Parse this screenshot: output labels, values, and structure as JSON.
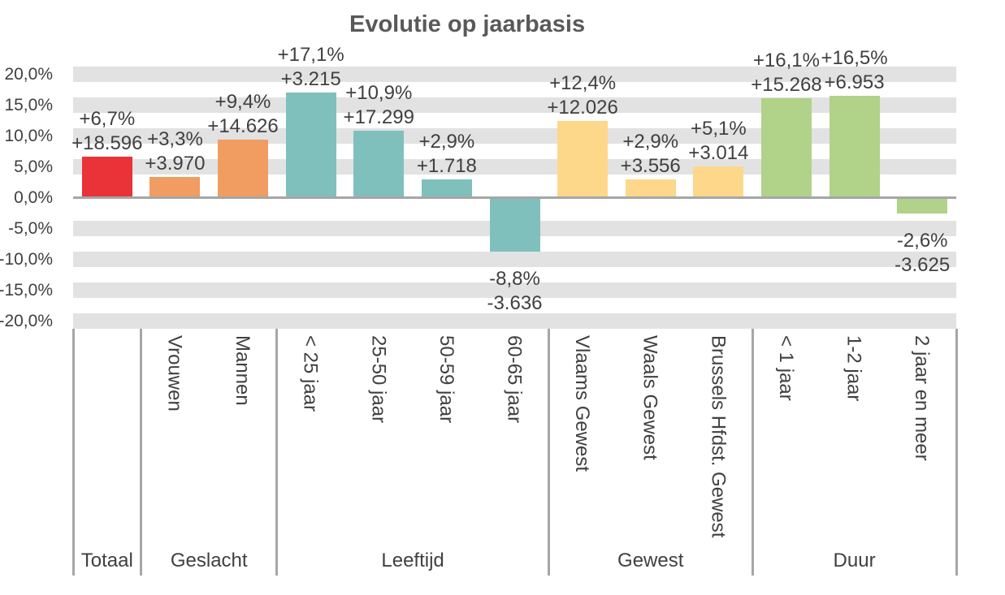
{
  "chart_data": {
    "type": "bar",
    "title": "Evolutie op jaarbasis",
    "y_axis": {
      "unit": "%",
      "min": -20,
      "max": 20,
      "tick_values": [
        20,
        15,
        10,
        5,
        0,
        -5,
        -10,
        -15,
        -20
      ],
      "tick_labels": [
        "20,0%",
        "15,0%",
        "10,0%",
        "5,0%",
        "0,0%",
        "-5,0%",
        "-10,0%",
        "-15,0%",
        "-20,0%"
      ],
      "gridlines": "thick gray bands at every 5% except 0"
    },
    "colors": {
      "band": "#e2e2e2",
      "axis_line": "#a6a6a6",
      "separator_line": "#a6a6a6",
      "label_text": "#404040",
      "title_text": "#595959"
    },
    "groups": [
      {
        "label": "Totaal",
        "color": "#e93338",
        "bars": [
          {
            "category": "",
            "pct_label": "+6,7%",
            "abs_label": "+18.596",
            "value_pct": 6.7,
            "value_abs": 18596
          }
        ]
      },
      {
        "label": "Geslacht",
        "color": "#f19c61",
        "bars": [
          {
            "category": "Vrouwen",
            "pct_label": "+3,3%",
            "abs_label": "+3.970",
            "value_pct": 3.3,
            "value_abs": 3970
          },
          {
            "category": "Mannen",
            "pct_label": "+9,4%",
            "abs_label": "+14.626",
            "value_pct": 9.4,
            "value_abs": 14626
          }
        ]
      },
      {
        "label": "Leeftijd",
        "color": "#7fc0bd",
        "bars": [
          {
            "category": "< 25 jaar",
            "pct_label": "+17,1%",
            "abs_label": "+3.215",
            "value_pct": 17.1,
            "value_abs": 3215
          },
          {
            "category": "25-50 jaar",
            "pct_label": "+10,9%",
            "abs_label": "+17.299",
            "value_pct": 10.9,
            "value_abs": 17299
          },
          {
            "category": "50-59 jaar",
            "pct_label": "+2,9%",
            "abs_label": "+1.718",
            "value_pct": 2.9,
            "value_abs": 1718
          },
          {
            "category": "60-65 jaar",
            "pct_label": "-8,8%",
            "abs_label": "-3.636",
            "value_pct": -8.8,
            "value_abs": -3636
          }
        ]
      },
      {
        "label": "Gewest",
        "color": "#fdd78a",
        "bars": [
          {
            "category": "Vlaams Gewest",
            "pct_label": "+12,4%",
            "abs_label": "+12.026",
            "value_pct": 12.4,
            "value_abs": 12026
          },
          {
            "category": "Waals Gewest",
            "pct_label": "+2,9%",
            "abs_label": "+3.556",
            "value_pct": 2.9,
            "value_abs": 3556
          },
          {
            "category": "Brussels Hfdst. Gewest",
            "pct_label": "+5,1%",
            "abs_label": "+3.014",
            "value_pct": 5.1,
            "value_abs": 3014
          }
        ]
      },
      {
        "label": "Duur",
        "color": "#b0d289",
        "bars": [
          {
            "category": "< 1 jaar",
            "pct_label": "+16,1%",
            "abs_label": "+15.268",
            "value_pct": 16.1,
            "value_abs": 15268
          },
          {
            "category": "1-2 jaar",
            "pct_label": "+16,5%",
            "abs_label": "+6.953",
            "value_pct": 16.5,
            "value_abs": 6953
          },
          {
            "category": "2 jaar en meer",
            "pct_label": "-2,6%",
            "abs_label": "-3.625",
            "value_pct": -2.6,
            "value_abs": -3625
          }
        ]
      }
    ]
  }
}
